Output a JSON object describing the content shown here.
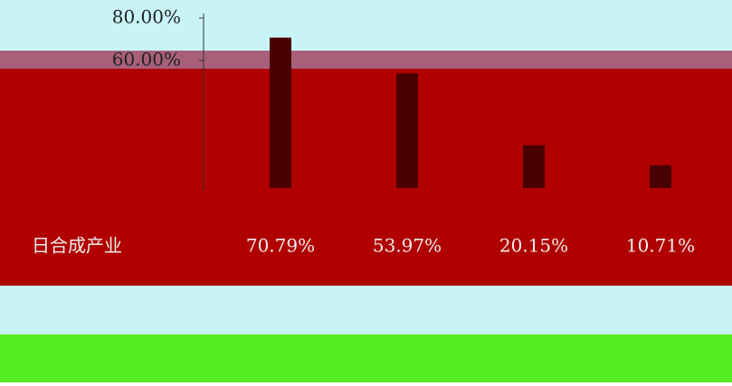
{
  "chart_data": {
    "type": "bar",
    "categories": [
      null,
      null,
      null,
      null
    ],
    "series": [
      {
        "name": "日合成产业",
        "color": "#4a0000",
        "values": [
          70.79,
          53.97,
          20.15,
          10.71
        ],
        "value_labels": [
          "70.79%",
          "53.97%",
          "20.15%",
          "10.71%"
        ]
      }
    ],
    "ylim": [
      0,
      80
    ],
    "yticks": [
      {
        "value": 60,
        "label": "60.00%"
      },
      {
        "value": 80,
        "label": "80.00%"
      }
    ]
  }
}
